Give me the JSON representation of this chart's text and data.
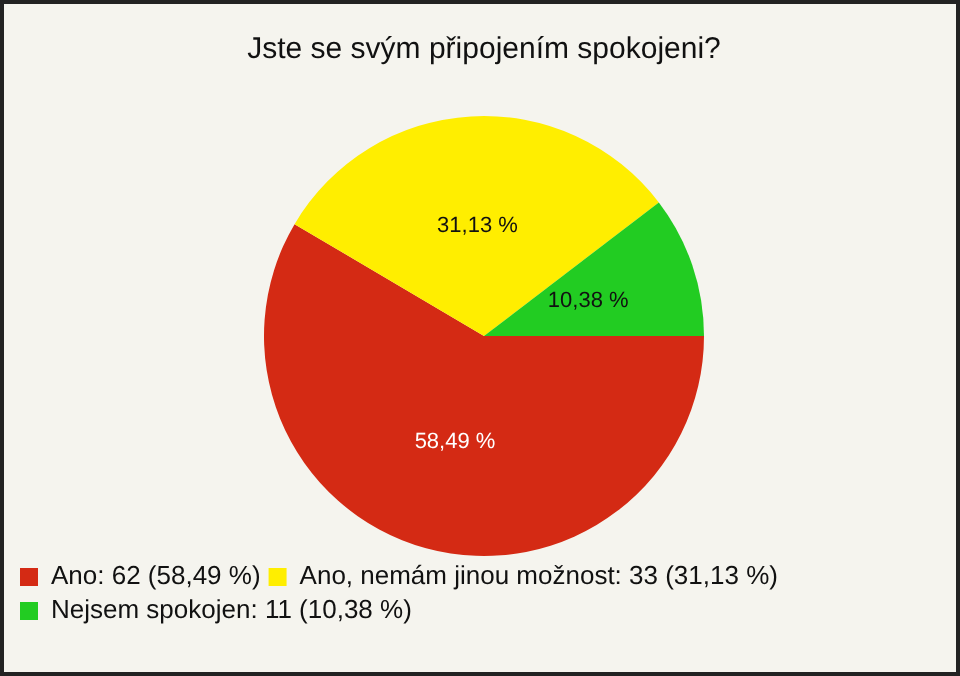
{
  "chart_data": {
    "type": "pie",
    "title": "Jste se svým připojením spokojeni?",
    "categories": [
      "Ano: 62 (58,49 %)",
      "Ano, nemám jinou možnost: 33 (31,13 %)",
      "Nejsem spokojen: 11 (10,38 %)"
    ],
    "values": [
      58.49,
      31.13,
      10.38
    ],
    "colors": [
      "#d42a14",
      "#ffee00",
      "#22cc22"
    ],
    "value_labels": [
      "58,49 %",
      "31,13 %",
      "10,38 %"
    ],
    "legend": "bottom left"
  }
}
